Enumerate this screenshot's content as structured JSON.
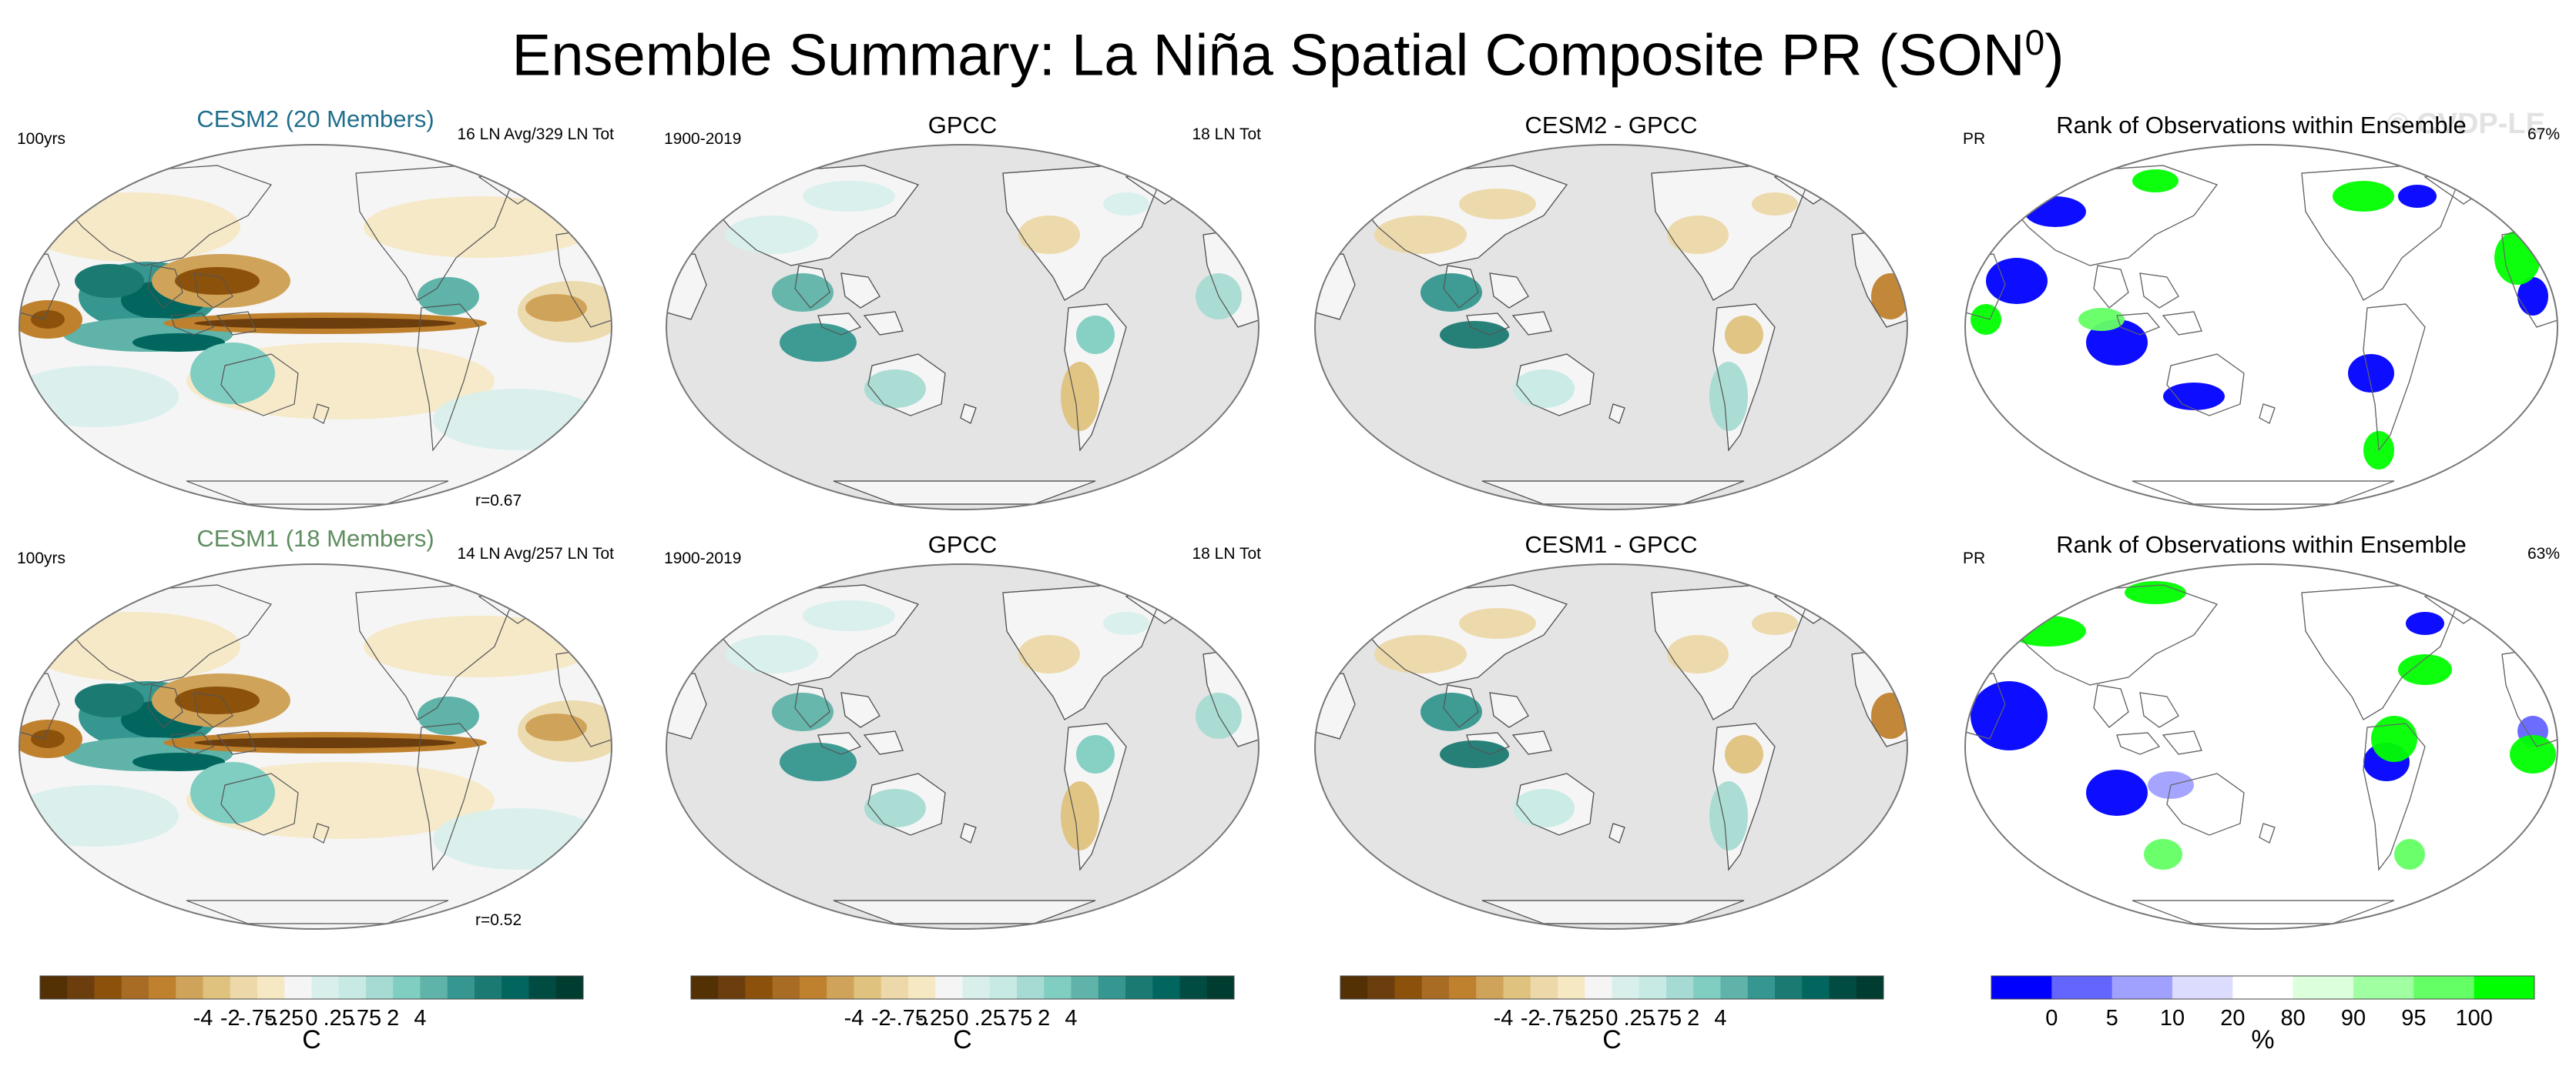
{
  "figure": {
    "title": "Ensemble Summary: La Niña Spatial Composite PR (SON",
    "title_sup": "0",
    "title_close": ")",
    "watermark": "© CVDP-LE"
  },
  "colors": {
    "diverging": [
      "#543005",
      "#6d3e0d",
      "#8c510a",
      "#a86c25",
      "#bf812d",
      "#d0a35a",
      "#dfc27d",
      "#ecd8a8",
      "#f6e8c3",
      "#f5f5f5",
      "#d8efec",
      "#c7eae5",
      "#a6dbd3",
      "#80cdc1",
      "#5fb3a8",
      "#35978f",
      "#1b7a72",
      "#01665e",
      "#004c42",
      "#003c30"
    ],
    "rank": [
      "#0000ff",
      "#6464ff",
      "#a0a0ff",
      "#dcdcff",
      "#ffffff",
      "#dcffdc",
      "#a0ffa0",
      "#64ff64",
      "#00ff00"
    ],
    "ocean_masked": "#e4e4e4",
    "land_outline": "#555555"
  },
  "rows": [
    {
      "model": {
        "title": "CESM2 (20 Members)",
        "title_color": "#1f6e8c",
        "left_label": "100yrs",
        "right_label": "16 LN Avg/329 LN Tot",
        "bottom_label": "r=0.67"
      },
      "obs": {
        "title": "GPCC",
        "left_label": "1900-2019",
        "right_label": "18 LN Tot"
      },
      "diff": {
        "title": "CESM2 - GPCC"
      },
      "rank": {
        "title": "Rank of Observations within Ensemble",
        "left_label": "PR",
        "right_label": "67%"
      }
    },
    {
      "model": {
        "title": "CESM1 (18 Members)",
        "title_color": "#5f8d5f",
        "left_label": "100yrs",
        "right_label": "14 LN Avg/257 LN Tot",
        "bottom_label": "r=0.52"
      },
      "obs": {
        "title": "GPCC",
        "left_label": "1900-2019",
        "right_label": "18 LN Tot"
      },
      "diff": {
        "title": "CESM1 - GPCC"
      },
      "rank": {
        "title": "Rank of Observations within Ensemble",
        "left_label": "PR",
        "right_label": "63%"
      }
    }
  ],
  "colorbars": {
    "diverging": {
      "ticks": [
        "-4",
        "-2",
        "-.75",
        "-.25",
        "0",
        ".25",
        ".75",
        "2",
        "4"
      ],
      "unit": "C"
    },
    "rank": {
      "ticks": [
        "0",
        "5",
        "10",
        "20",
        "80",
        "90",
        "95",
        "100"
      ],
      "unit": "%"
    }
  },
  "chart_data": {
    "type": "heatmap",
    "title": "Ensemble Summary: La Niña Spatial Composite PR (SON0)",
    "panels": [
      "CESM2 (20 Members)",
      "GPCC",
      "CESM2 - GPCC",
      "Rank of Observations within Ensemble",
      "CESM1 (18 Members)",
      "GPCC",
      "CESM1 - GPCC",
      "Rank of Observations within Ensemble"
    ],
    "diverging_levels": [
      "-4",
      "-2",
      "-.75",
      "-.25",
      "0",
      ".25",
      ".75",
      "2",
      "4"
    ],
    "diverging_unit": "C",
    "rank_levels": [
      "0",
      "5",
      "10",
      "20",
      "80",
      "90",
      "95",
      "100"
    ],
    "rank_unit": "%",
    "pattern_correlation": {
      "CESM2 (20 Members)": 0.67,
      "CESM1 (18 Members)": 0.52
    },
    "rank_percent": {
      "CESM2": 67,
      "CESM1": 63
    }
  }
}
